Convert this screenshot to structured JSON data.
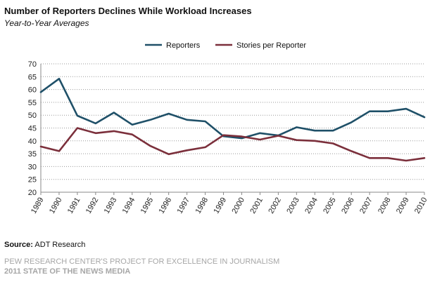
{
  "header": {
    "title": "Number of Reporters  Declines While Workload Increases",
    "subtitle": "Year-to-Year Averages"
  },
  "source": {
    "label": "Source:",
    "text": "ADT Research"
  },
  "footer": {
    "line1": "PEW RESEARCH CENTER'S PROJECT FOR EXCELLENCE IN JOURNALISM",
    "line2": "2011 STATE OF THE NEWS MEDIA"
  },
  "chart_data": {
    "type": "line",
    "title": "Number of Reporters  Declines While Workload Increases",
    "subtitle": "Year-to-Year Averages",
    "x": [
      "1989",
      "1990",
      "1991",
      "1992",
      "1993",
      "1994",
      "1995",
      "1996",
      "1997",
      "1998",
      "1999",
      "2000",
      "2001",
      "2002",
      "2003",
      "2004",
      "2005",
      "2006",
      "2007",
      "2008",
      "2009",
      "2010"
    ],
    "ylim": [
      20,
      70
    ],
    "yticks": [
      20,
      25,
      30,
      35,
      40,
      45,
      50,
      55,
      60,
      65,
      70
    ],
    "grid": true,
    "legend_position": "top",
    "series": [
      {
        "name": "Reporters",
        "color": "#1f5068",
        "values": [
          59,
          64.2,
          49.8,
          46.8,
          51,
          46.3,
          48.2,
          50.6,
          48.2,
          47.6,
          41.8,
          41,
          43,
          42.1,
          45.3,
          44,
          44,
          47.2,
          51.5,
          51.5,
          52.5,
          49.2
        ]
      },
      {
        "name": "Stories per Reporter",
        "color": "#7b2f3b",
        "values": [
          37.8,
          36,
          45,
          43,
          43.8,
          42.5,
          38,
          34.8,
          36.3,
          37.5,
          42.2,
          41.7,
          40.5,
          42,
          40.3,
          40,
          39,
          36,
          33.3,
          33.3,
          32.3,
          33.3
        ]
      }
    ]
  }
}
